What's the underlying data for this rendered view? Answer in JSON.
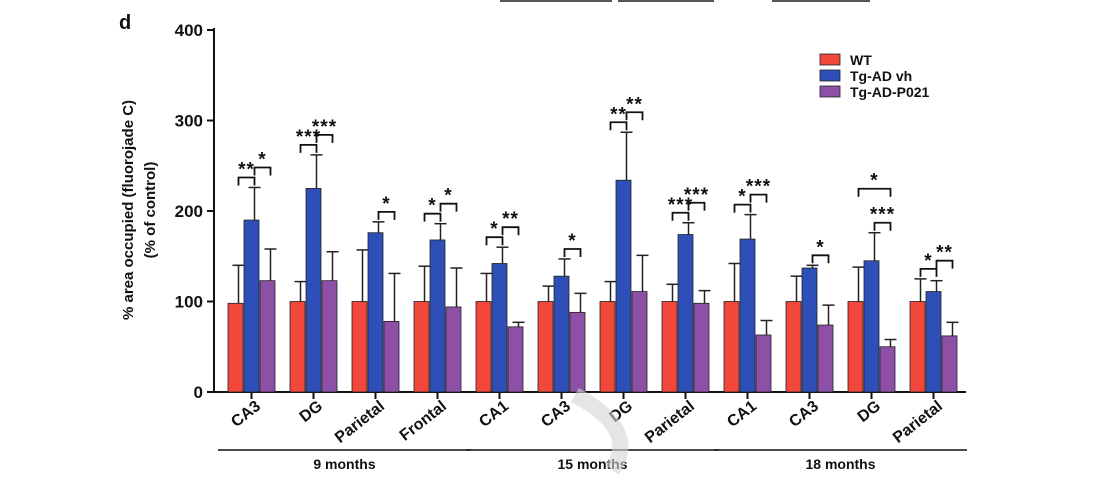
{
  "panel_letter": "d",
  "colors": {
    "wt": "#f2483c",
    "tg_vh": "#2f4fb8",
    "tg_p021": "#8e4fa6",
    "axis": "#111111"
  },
  "chart_data": {
    "type": "bar",
    "title": "",
    "ylabel_line1": "% area occupied (fluorojade C)",
    "ylabel_line2": "(% of control)",
    "xlabel": "",
    "ylim": [
      0,
      400
    ],
    "yticks": [
      0,
      100,
      200,
      300,
      400
    ],
    "legend_position": "top-right",
    "series": [
      {
        "name": "WT",
        "color": "#f2483c"
      },
      {
        "name": "Tg-AD vh",
        "color": "#2f4fb8"
      },
      {
        "name": "Tg-AD-P021",
        "color": "#8e4fa6"
      }
    ],
    "groups": [
      {
        "name": "9 months",
        "start": 0,
        "end": 3
      },
      {
        "name": "15 months",
        "start": 4,
        "end": 7
      },
      {
        "name": "18 months",
        "start": 8,
        "end": 11
      }
    ],
    "categories": [
      "CA3",
      "DG",
      "Parietal",
      "Frontal",
      "CA1",
      "CA3",
      "DG",
      "Parietal",
      "CA1",
      "CA3",
      "DG",
      "Parietal"
    ],
    "values": [
      [
        98,
        190,
        123
      ],
      [
        100,
        225,
        123
      ],
      [
        100,
        176,
        78
      ],
      [
        100,
        168,
        94
      ],
      [
        100,
        142,
        72
      ],
      [
        100,
        128,
        88
      ],
      [
        100,
        234,
        111
      ],
      [
        100,
        174,
        98
      ],
      [
        100,
        169,
        63
      ],
      [
        100,
        137,
        74
      ],
      [
        100,
        145,
        50
      ],
      [
        100,
        111,
        62
      ]
    ],
    "errors": [
      [
        42,
        36,
        35
      ],
      [
        22,
        37,
        32
      ],
      [
        57,
        12,
        53
      ],
      [
        39,
        18,
        43
      ],
      [
        31,
        18,
        5
      ],
      [
        17,
        19,
        21
      ],
      [
        22,
        53,
        40
      ],
      [
        19,
        13,
        14
      ],
      [
        42,
        27,
        16
      ],
      [
        28,
        3,
        22
      ],
      [
        38,
        31,
        8
      ],
      [
        25,
        12,
        15
      ]
    ],
    "significance": [
      {
        "category": 0,
        "from": 0,
        "to": 1,
        "label": "**",
        "level": 1
      },
      {
        "category": 0,
        "from": 1,
        "to": 2,
        "label": "*",
        "level": 2
      },
      {
        "category": 1,
        "from": 0,
        "to": 1,
        "label": "***",
        "level": 1
      },
      {
        "category": 1,
        "from": 1,
        "to": 2,
        "label": "***",
        "level": 2
      },
      {
        "category": 2,
        "from": 1,
        "to": 2,
        "label": "*",
        "level": 1
      },
      {
        "category": 3,
        "from": 0,
        "to": 1,
        "label": "*",
        "level": 1
      },
      {
        "category": 3,
        "from": 1,
        "to": 2,
        "label": "*",
        "level": 2
      },
      {
        "category": 4,
        "from": 0,
        "to": 1,
        "label": "*",
        "level": 1
      },
      {
        "category": 4,
        "from": 1,
        "to": 2,
        "label": "**",
        "level": 2
      },
      {
        "category": 5,
        "from": 1,
        "to": 2,
        "label": "*",
        "level": 1
      },
      {
        "category": 6,
        "from": 0,
        "to": 1,
        "label": "**",
        "level": 1
      },
      {
        "category": 6,
        "from": 1,
        "to": 2,
        "label": "**",
        "level": 2
      },
      {
        "category": 7,
        "from": 0,
        "to": 1,
        "label": "***",
        "level": 1
      },
      {
        "category": 7,
        "from": 1,
        "to": 2,
        "label": "***",
        "level": 2
      },
      {
        "category": 8,
        "from": 0,
        "to": 1,
        "label": "*",
        "level": 1
      },
      {
        "category": 8,
        "from": 1,
        "to": 2,
        "label": "***",
        "level": 2
      },
      {
        "category": 9,
        "from": 1,
        "to": 2,
        "label": "*",
        "level": 1
      },
      {
        "category": 10,
        "from": 0,
        "to": 2,
        "label": "*",
        "level": 3
      },
      {
        "category": 10,
        "from": 1,
        "to": 2,
        "label": "***",
        "level": 1
      },
      {
        "category": 11,
        "from": 0,
        "to": 1,
        "label": "*",
        "level": 1
      },
      {
        "category": 11,
        "from": 1,
        "to": 2,
        "label": "**",
        "level": 2
      }
    ]
  }
}
